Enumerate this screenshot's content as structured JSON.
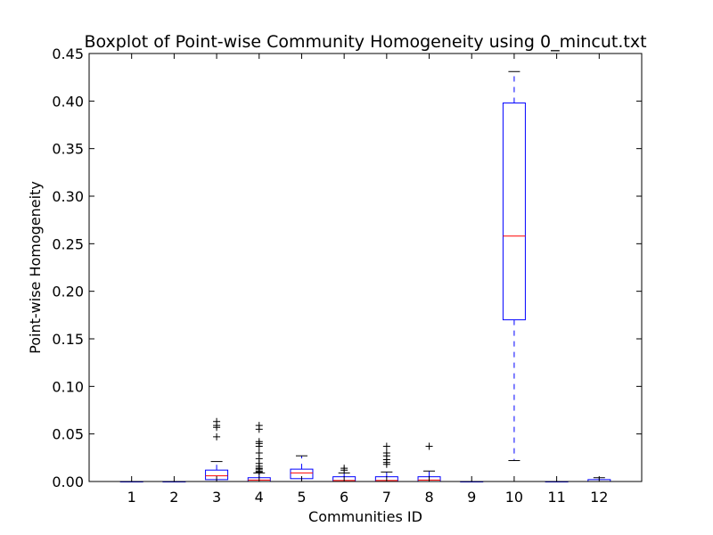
{
  "chart_data": {
    "type": "boxplot",
    "title": "Boxplot of Point-wise Community Homogeneity using 0_mincut.txt",
    "xlabel": "Communities ID",
    "ylabel": "Point-wise Homogeneity",
    "ylim": [
      0,
      0.45
    ],
    "yticks": [
      "0.00",
      "0.05",
      "0.10",
      "0.15",
      "0.20",
      "0.25",
      "0.30",
      "0.35",
      "0.40",
      "0.45"
    ],
    "categories": [
      "1",
      "2",
      "3",
      "4",
      "5",
      "6",
      "7",
      "8",
      "9",
      "10",
      "11",
      "12"
    ],
    "grid": false,
    "colors": {
      "box": "#0000ff",
      "median": "#ff0000",
      "whisker": "#0000ff",
      "outlier": "#000000"
    },
    "boxes": [
      {
        "id": "1",
        "whislo": 0,
        "q1": 0,
        "med": 0,
        "q3": 0,
        "whishi": 0,
        "fliers": []
      },
      {
        "id": "2",
        "whislo": 0,
        "q1": 0,
        "med": 0,
        "q3": 0,
        "whishi": 0,
        "fliers": []
      },
      {
        "id": "3",
        "whislo": 0,
        "q1": 0.002,
        "med": 0.006,
        "q3": 0.012,
        "whishi": 0.021,
        "fliers": [
          0.047,
          0.057,
          0.059,
          0.063
        ]
      },
      {
        "id": "4",
        "whislo": 0,
        "q1": 0,
        "med": 0.0015,
        "q3": 0.004,
        "whishi": 0.009,
        "fliers": [
          0.01,
          0.011,
          0.013,
          0.014,
          0.016,
          0.019,
          0.024,
          0.03,
          0.037,
          0.04,
          0.042,
          0.055,
          0.059
        ]
      },
      {
        "id": "5",
        "whislo": 0,
        "q1": 0.003,
        "med": 0.009,
        "q3": 0.013,
        "whishi": 0.027,
        "fliers": []
      },
      {
        "id": "6",
        "whislo": 0,
        "q1": 0,
        "med": 0.001,
        "q3": 0.005,
        "whishi": 0.009,
        "fliers": [
          0.012,
          0.014
        ]
      },
      {
        "id": "7",
        "whislo": 0,
        "q1": 0,
        "med": 0.001,
        "q3": 0.005,
        "whishi": 0.01,
        "fliers": [
          0.018,
          0.02,
          0.023,
          0.027,
          0.03,
          0.037
        ]
      },
      {
        "id": "8",
        "whislo": 0,
        "q1": 0,
        "med": 0.0015,
        "q3": 0.005,
        "whishi": 0.011,
        "fliers": [
          0.037
        ]
      },
      {
        "id": "9",
        "whislo": 0,
        "q1": 0,
        "med": 0,
        "q3": 0,
        "whishi": 0,
        "fliers": []
      },
      {
        "id": "10",
        "whislo": 0.022,
        "q1": 0.17,
        "med": 0.258,
        "q3": 0.398,
        "whishi": 0.431,
        "fliers": []
      },
      {
        "id": "11",
        "whislo": 0,
        "q1": 0,
        "med": 0,
        "q3": 0,
        "whishi": 0,
        "fliers": []
      },
      {
        "id": "12",
        "whislo": 0,
        "q1": 0,
        "med": 0,
        "q3": 0.002,
        "whishi": 0.004,
        "fliers": []
      }
    ]
  }
}
